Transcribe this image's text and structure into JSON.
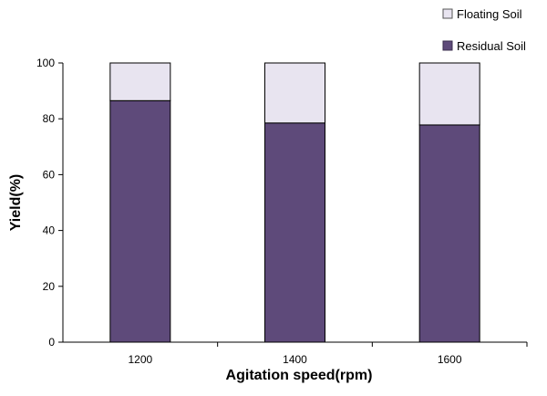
{
  "chart_data": {
    "type": "bar",
    "stacked": true,
    "categories": [
      "1200",
      "1400",
      "1600"
    ],
    "series": [
      {
        "name": "Residual Soil",
        "values": [
          86.5,
          78.5,
          77.8
        ],
        "color": "#5e4a7a"
      },
      {
        "name": "Floating Soil",
        "values": [
          13.5,
          21.5,
          22.2
        ],
        "color": "#e8e4f0"
      }
    ],
    "xlabel": "Agitation speed(rpm)",
    "ylabel": "Yield(%)",
    "ylim": [
      0,
      100
    ],
    "yticks": [
      "0",
      "20",
      "40",
      "60",
      "80",
      "100"
    ],
    "grid": false,
    "legend_position": "top-right"
  }
}
